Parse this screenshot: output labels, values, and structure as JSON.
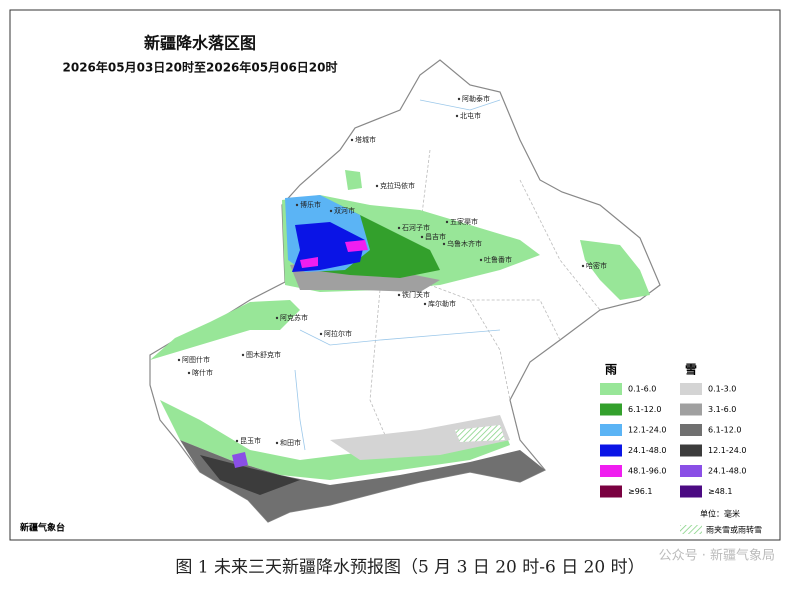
{
  "title": "新疆降水落区图",
  "subtitle": "2026年05月03日20时至2026年05月06日20时",
  "cities": [
    "阿勒泰市",
    "北屯市",
    "塔城市",
    "克拉玛依市",
    "博乐市",
    "双河市",
    "石河子市",
    "五家渠市",
    "昌吉市",
    "乌鲁木齐市",
    "吐鲁番市",
    "哈密市",
    "铁门关市",
    "库尔勒市",
    "阿克苏市",
    "阿拉尔市",
    "阿图什市",
    "喀什市",
    "图木舒克市",
    "昆玉市",
    "和田市"
  ],
  "legend": {
    "rain_title": "雨",
    "snow_title": "雪",
    "rain": [
      {
        "label": "0.1-6.0",
        "color": "#98e698"
      },
      {
        "label": "6.1-12.0",
        "color": "#33a02c"
      },
      {
        "label": "12.1-24.0",
        "color": "#5bb4f5"
      },
      {
        "label": "24.1-48.0",
        "color": "#0a14e6"
      },
      {
        "label": "48.1-96.0",
        "color": "#f01ef0"
      },
      {
        "label": "≥96.1",
        "color": "#7a0040"
      }
    ],
    "snow": [
      {
        "label": "0.1-3.0",
        "color": "#d4d4d4"
      },
      {
        "label": "3.1-6.0",
        "color": "#a0a0a0"
      },
      {
        "label": "6.1-12.0",
        "color": "#707070"
      },
      {
        "label": "12.1-24.0",
        "color": "#3c3c3c"
      },
      {
        "label": "24.1-48.0",
        "color": "#8a4fe6"
      },
      {
        "label": "≥48.1",
        "color": "#4b0a82"
      }
    ],
    "unit": "单位：毫米",
    "mixed": "雨夹雪或雨转雪"
  },
  "source": "新疆气象台",
  "caption": "图 1 未来三天新疆降水预报图（5 月 3 日 20 时-6 日 20 时）",
  "watermark": "公众号 · 新疆气象局"
}
